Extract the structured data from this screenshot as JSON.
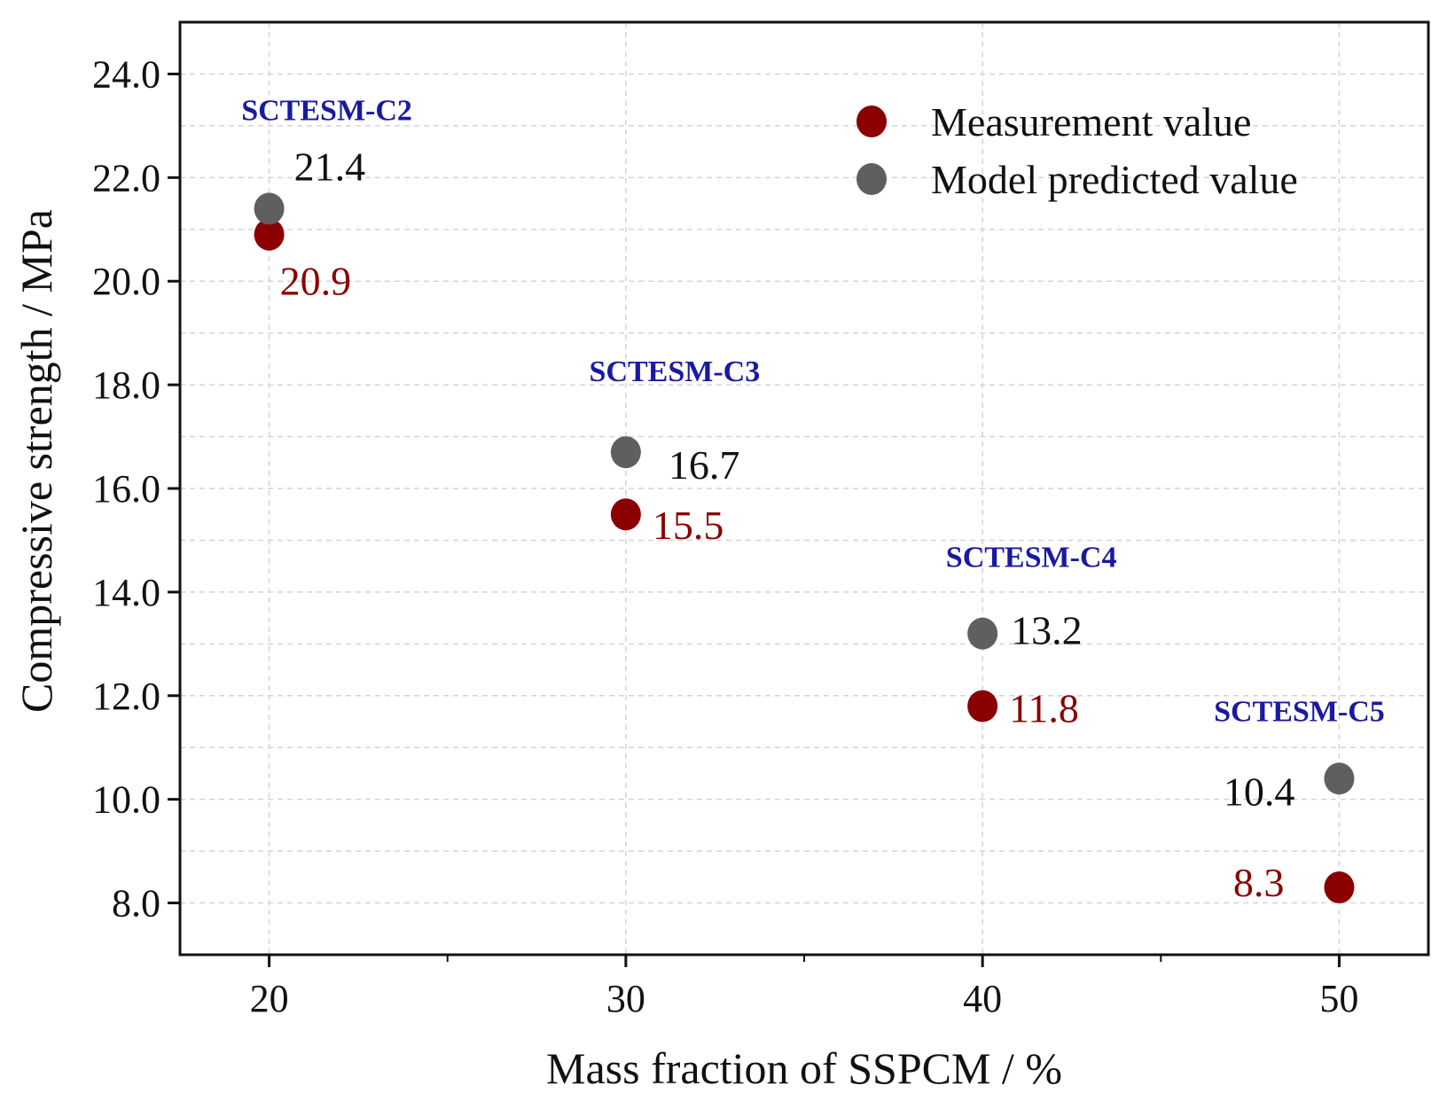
{
  "colors": {
    "measurement": "#8b0000",
    "model": "#5f5f5f",
    "group_label": "#1a1aa0",
    "model_label": "#111111"
  },
  "chart_data": {
    "type": "scatter",
    "title": "",
    "xlabel": "Mass fraction of  SSPCM / %",
    "ylabel": "Compressive strength / MPa",
    "xlim": [
      17.5,
      52.5
    ],
    "ylim": [
      7.0,
      25.0
    ],
    "xticks": [
      20,
      30,
      40,
      50
    ],
    "xtick_labels": [
      "20",
      "30",
      "40",
      "50"
    ],
    "yticks": [
      8,
      10,
      12,
      14,
      16,
      18,
      20,
      22,
      24
    ],
    "ytick_labels": [
      "8.0",
      "10.0",
      "12.0",
      "14.0",
      "16.0",
      "18.0",
      "20.0",
      "22.0",
      "24.0"
    ],
    "grid": true,
    "legend_position": "top-right",
    "series": [
      {
        "name": "Measurement value",
        "color_key": "measurement",
        "x": [
          20,
          30,
          40,
          50
        ],
        "values": [
          20.9,
          15.5,
          11.8,
          8.3
        ],
        "labels": [
          "20.9",
          "15.5",
          "11.8",
          "8.3"
        ]
      },
      {
        "name": "Model predicted value",
        "color_key": "model",
        "x": [
          20,
          30,
          40,
          50
        ],
        "values": [
          21.4,
          16.7,
          13.2,
          10.4
        ],
        "labels": [
          "21.4",
          "16.7",
          "13.2",
          "10.4"
        ]
      }
    ],
    "annotations": [
      {
        "text": "SCTESM-C2",
        "x": 20
      },
      {
        "text": "SCTESM-C3",
        "x": 30
      },
      {
        "text": "SCTESM-C4",
        "x": 40
      },
      {
        "text": "SCTESM-C5",
        "x": 50
      }
    ]
  }
}
